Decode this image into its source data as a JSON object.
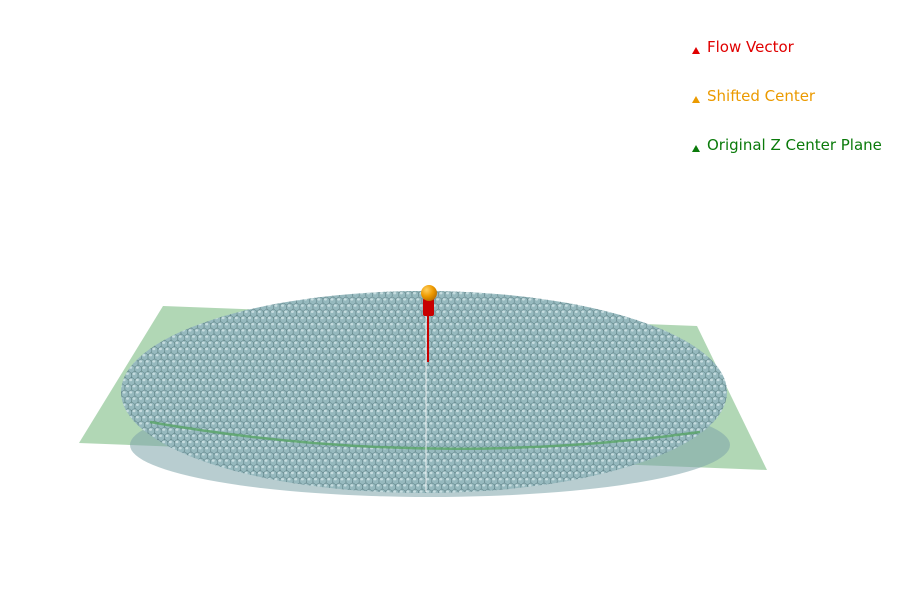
{
  "legend": {
    "items": [
      {
        "label": "Flow Vector",
        "color": "#e00000"
      },
      {
        "label": "Shifted Center",
        "color": "#eb9a00"
      },
      {
        "label": "Original Z Center Plane",
        "color": "#0a7a0a"
      }
    ]
  },
  "scene": {
    "plane_color": "#a9d3ad",
    "plane_line_color": "#5aa56a",
    "bead_color": "#96b9be",
    "bead_highlight": "#c6dcdf",
    "bead_shadow": "#5e8086",
    "vector_color": "#c80000",
    "center_color": "#ee9a00"
  }
}
